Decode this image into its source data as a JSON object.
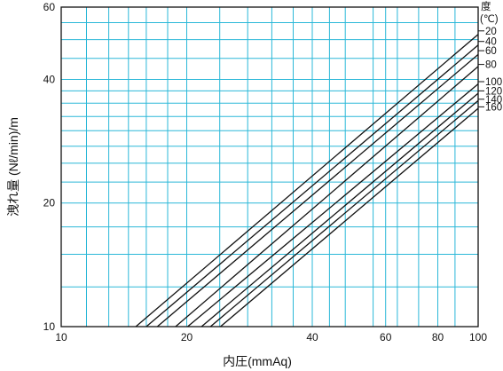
{
  "chart_data": {
    "type": "line",
    "title": "",
    "xlabel": "内圧(mmAq)",
    "ylabel": "洩れ量 (Nℓ/min)/m",
    "x_scale": "log",
    "y_scale": "log",
    "xlim": [
      10,
      100
    ],
    "ylim": [
      10,
      60
    ],
    "x_ticks": [
      10,
      20,
      40,
      60,
      80,
      100
    ],
    "y_ticks": [
      10,
      20,
      40,
      60
    ],
    "x_grid": [
      10,
      11.5,
      13,
      14.5,
      16,
      18,
      20,
      24,
      28,
      32,
      36,
      40,
      44,
      48,
      56,
      60,
      64,
      72,
      80,
      88,
      100
    ],
    "y_grid": [
      10,
      12.5,
      15,
      17.5,
      20,
      22.5,
      25,
      27.5,
      30,
      32.5,
      35,
      37.5,
      40,
      45,
      50,
      55,
      60
    ],
    "grid": true,
    "legend_title": "度",
    "legend_unit": "(℃)",
    "legend_placement": "right",
    "series": [
      {
        "name": "20",
        "points": [
          [
            15.1,
            10
          ],
          [
            100,
            51.5
          ]
        ]
      },
      {
        "name": "40",
        "points": [
          [
            16.0,
            10
          ],
          [
            100,
            48.5
          ]
        ]
      },
      {
        "name": "60",
        "points": [
          [
            17.0,
            10
          ],
          [
            100,
            46
          ]
        ]
      },
      {
        "name": "80",
        "points": [
          [
            18.8,
            10
          ],
          [
            100,
            43
          ]
        ]
      },
      {
        "name": "100",
        "points": [
          [
            20.1,
            10
          ],
          [
            100,
            39
          ]
        ]
      },
      {
        "name": "120",
        "points": [
          [
            21.7,
            10
          ],
          [
            100,
            37
          ]
        ]
      },
      {
        "name": "140",
        "points": [
          [
            22.8,
            10
          ],
          [
            100,
            35.5
          ]
        ]
      },
      {
        "name": "160",
        "points": [
          [
            24.1,
            10
          ],
          [
            100,
            34
          ]
        ]
      }
    ],
    "label_y": [
      [
        "20",
        52.5
      ],
      [
        "40",
        49.5
      ],
      [
        "60",
        47
      ],
      [
        "80",
        43.5
      ],
      [
        "100",
        39.5
      ],
      [
        "120",
        37.5
      ],
      [
        "140",
        35.8
      ],
      [
        "160",
        34.3
      ]
    ]
  },
  "colors": {
    "grid": "#2bb8d8",
    "frame": "#111111",
    "line": "#111111",
    "text": "#111111"
  }
}
